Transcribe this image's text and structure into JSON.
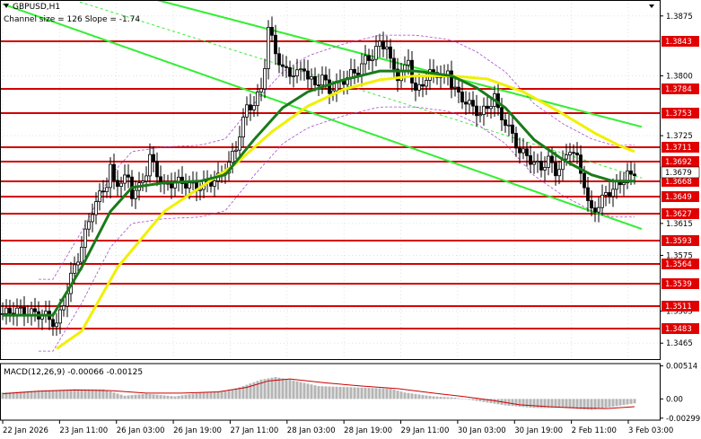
{
  "header": {
    "symbol": "GBPUSD,H1",
    "channel_text": "Channel size = 126 Slope = -1.74"
  },
  "macd_header": {
    "name": "MACD(12,26,9)",
    "value1": "-0.00066",
    "value2": "-0.00125"
  },
  "colors": {
    "candle": "#000000",
    "level_line": "#d40000",
    "level_label_bg": "#e00000",
    "ma_fast": "#1a7a1a",
    "ma_slow": "#f0f000",
    "channel": "#33ee33",
    "envelope": "#a64dcc",
    "macd_hist": "#b5b5b5",
    "macd_signal": "#cc0000",
    "grid": "#d0d0d0"
  },
  "chart_data": {
    "type": "candlestick",
    "title": "GBPUSD,H1",
    "subtitle": "Channel size = 126 Slope = -1.74",
    "y_range": [
      1.3445,
      1.3895
    ],
    "current_price": "1.3679",
    "price_ticks": [
      "1.3875",
      "1.3800",
      "1.3725",
      "1.3615",
      "1.3575",
      "1.3505",
      "1.3465"
    ],
    "levels": [
      "1.3843",
      "1.3784",
      "1.3753",
      "1.3711",
      "1.3692",
      "1.3668",
      "1.3649",
      "1.3627",
      "1.3593",
      "1.3564",
      "1.3539",
      "1.3511",
      "1.3483"
    ],
    "x_labels": [
      "22 Jan 2026",
      "23 Jan 11:00",
      "26 Jan 03:00",
      "26 Jan 19:00",
      "27 Jan 11:00",
      "28 Jan 03:00",
      "28 Jan 19:00",
      "29 Jan 11:00",
      "30 Jan 03:00",
      "30 Jan 19:00",
      "2 Feb 11:00",
      "3 Feb 03:00"
    ],
    "close_path": [
      [
        0,
        1.3502
      ],
      [
        4,
        1.3506
      ],
      [
        8,
        1.3503
      ],
      [
        12,
        1.3499
      ],
      [
        15,
        1.3488
      ],
      [
        17,
        1.3515
      ],
      [
        19,
        1.3548
      ],
      [
        21,
        1.3572
      ],
      [
        23,
        1.3602
      ],
      [
        25,
        1.3632
      ],
      [
        27,
        1.365
      ],
      [
        29,
        1.3665
      ],
      [
        30,
        1.3685
      ],
      [
        31,
        1.3665
      ],
      [
        33,
        1.3668
      ],
      [
        35,
        1.3672
      ],
      [
        36,
        1.3652
      ],
      [
        38,
        1.366
      ],
      [
        40,
        1.368
      ],
      [
        41,
        1.3698
      ],
      [
        43,
        1.3678
      ],
      [
        45,
        1.366
      ],
      [
        48,
        1.3668
      ],
      [
        51,
        1.3665
      ],
      [
        54,
        1.366
      ],
      [
        57,
        1.3665
      ],
      [
        60,
        1.3672
      ],
      [
        63,
        1.369
      ],
      [
        65,
        1.371
      ],
      [
        66,
        1.3728
      ],
      [
        68,
        1.376
      ],
      [
        70,
        1.3765
      ],
      [
        72,
        1.3783
      ],
      [
        73,
        1.3815
      ],
      [
        74,
        1.386
      ],
      [
        75,
        1.3845
      ],
      [
        76,
        1.383
      ],
      [
        78,
        1.3808
      ],
      [
        80,
        1.3804
      ],
      [
        82,
        1.3802
      ],
      [
        84,
        1.3812
      ],
      [
        85,
        1.3796
      ],
      [
        87,
        1.379
      ],
      [
        89,
        1.3798
      ],
      [
        91,
        1.3782
      ],
      [
        93,
        1.3788
      ],
      [
        95,
        1.3795
      ],
      [
        97,
        1.3802
      ],
      [
        99,
        1.3806
      ],
      [
        101,
        1.382
      ],
      [
        103,
        1.3825
      ],
      [
        105,
        1.384
      ],
      [
        107,
        1.3838
      ],
      [
        108,
        1.3816
      ],
      [
        110,
        1.38
      ],
      [
        112,
        1.3808
      ],
      [
        113,
        1.3822
      ],
      [
        114,
        1.3796
      ],
      [
        115,
        1.3778
      ],
      [
        117,
        1.3792
      ],
      [
        119,
        1.3802
      ],
      [
        121,
        1.3804
      ],
      [
        123,
        1.3795
      ],
      [
        124,
        1.3808
      ],
      [
        125,
        1.379
      ],
      [
        127,
        1.3775
      ],
      [
        129,
        1.3768
      ],
      [
        131,
        1.376
      ],
      [
        133,
        1.3752
      ],
      [
        135,
        1.376
      ],
      [
        137,
        1.3775
      ],
      [
        138,
        1.3755
      ],
      [
        140,
        1.3742
      ],
      [
        142,
        1.3725
      ],
      [
        144,
        1.3705
      ],
      [
        146,
        1.37
      ],
      [
        148,
        1.369
      ],
      [
        150,
        1.3685
      ],
      [
        152,
        1.3695
      ],
      [
        154,
        1.368
      ],
      [
        156,
        1.369
      ],
      [
        158,
        1.371
      ],
      [
        160,
        1.3695
      ],
      [
        162,
        1.3665
      ],
      [
        163,
        1.364
      ],
      [
        164,
        1.363
      ],
      [
        166,
        1.3638
      ],
      [
        168,
        1.3652
      ],
      [
        170,
        1.3658
      ],
      [
        172,
        1.3665
      ],
      [
        174,
        1.3678
      ],
      [
        175,
        1.3672
      ],
      [
        176,
        1.3679
      ]
    ],
    "ma_fast": [
      [
        0,
        1.35
      ],
      [
        14,
        1.35
      ],
      [
        22,
        1.356
      ],
      [
        30,
        1.363
      ],
      [
        36,
        1.366
      ],
      [
        45,
        1.3666
      ],
      [
        55,
        1.3668
      ],
      [
        62,
        1.3676
      ],
      [
        70,
        1.372
      ],
      [
        78,
        1.376
      ],
      [
        85,
        1.378
      ],
      [
        95,
        1.3795
      ],
      [
        105,
        1.3806
      ],
      [
        115,
        1.3806
      ],
      [
        125,
        1.38
      ],
      [
        132,
        1.3785
      ],
      [
        140,
        1.376
      ],
      [
        148,
        1.372
      ],
      [
        156,
        1.3695
      ],
      [
        164,
        1.3676
      ],
      [
        170,
        1.3668
      ],
      [
        176,
        1.3668
      ]
    ],
    "ma_slow": [
      [
        15,
        1.3458
      ],
      [
        22,
        1.348
      ],
      [
        32,
        1.356
      ],
      [
        45,
        1.363
      ],
      [
        55,
        1.366
      ],
      [
        65,
        1.369
      ],
      [
        75,
        1.373
      ],
      [
        85,
        1.3762
      ],
      [
        95,
        1.3783
      ],
      [
        105,
        1.3795
      ],
      [
        115,
        1.38
      ],
      [
        125,
        1.38
      ],
      [
        135,
        1.3796
      ],
      [
        145,
        1.378
      ],
      [
        155,
        1.3755
      ],
      [
        165,
        1.3728
      ],
      [
        172,
        1.3712
      ],
      [
        176,
        1.3705
      ]
    ],
    "channel_lines": [
      [
        [
          0,
          1.389
        ],
        [
          178,
          1.3608
        ]
      ],
      [
        [
          43,
          1.3895
        ],
        [
          178,
          1.3736
        ]
      ]
    ],
    "macd": {
      "y_range": [
        -0.0033,
        0.0055
      ],
      "ticks": [
        "0.00514",
        "0.00",
        "-0.00299"
      ],
      "histogram": [
        [
          0,
          0.001
        ],
        [
          10,
          0.0013
        ],
        [
          20,
          0.0015
        ],
        [
          28,
          0.0015
        ],
        [
          34,
          0.0005
        ],
        [
          40,
          0.0008
        ],
        [
          48,
          0.0004
        ],
        [
          55,
          0.001
        ],
        [
          62,
          0.0012
        ],
        [
          66,
          0.0018
        ],
        [
          72,
          0.003
        ],
        [
          76,
          0.0034
        ],
        [
          80,
          0.003
        ],
        [
          88,
          0.002
        ],
        [
          98,
          0.0018
        ],
        [
          108,
          0.0016
        ],
        [
          112,
          0.001
        ],
        [
          120,
          0.0004
        ],
        [
          126,
          0.0002
        ],
        [
          132,
          -0.0003
        ],
        [
          140,
          -0.001
        ],
        [
          148,
          -0.0014
        ],
        [
          156,
          -0.0014
        ],
        [
          164,
          -0.0017
        ],
        [
          170,
          -0.0012
        ],
        [
          176,
          -0.0007
        ]
      ],
      "signal": [
        [
          0,
          0.0008
        ],
        [
          10,
          0.0012
        ],
        [
          20,
          0.0014
        ],
        [
          30,
          0.0013
        ],
        [
          40,
          0.0009
        ],
        [
          50,
          0.0009
        ],
        [
          60,
          0.0011
        ],
        [
          68,
          0.0018
        ],
        [
          74,
          0.0028
        ],
        [
          80,
          0.0031
        ],
        [
          90,
          0.0025
        ],
        [
          100,
          0.002
        ],
        [
          110,
          0.0016
        ],
        [
          120,
          0.0009
        ],
        [
          128,
          0.0004
        ],
        [
          136,
          -0.0002
        ],
        [
          144,
          -0.0009
        ],
        [
          152,
          -0.0012
        ],
        [
          160,
          -0.0014
        ],
        [
          168,
          -0.0015
        ],
        [
          176,
          -0.0012
        ]
      ]
    }
  }
}
